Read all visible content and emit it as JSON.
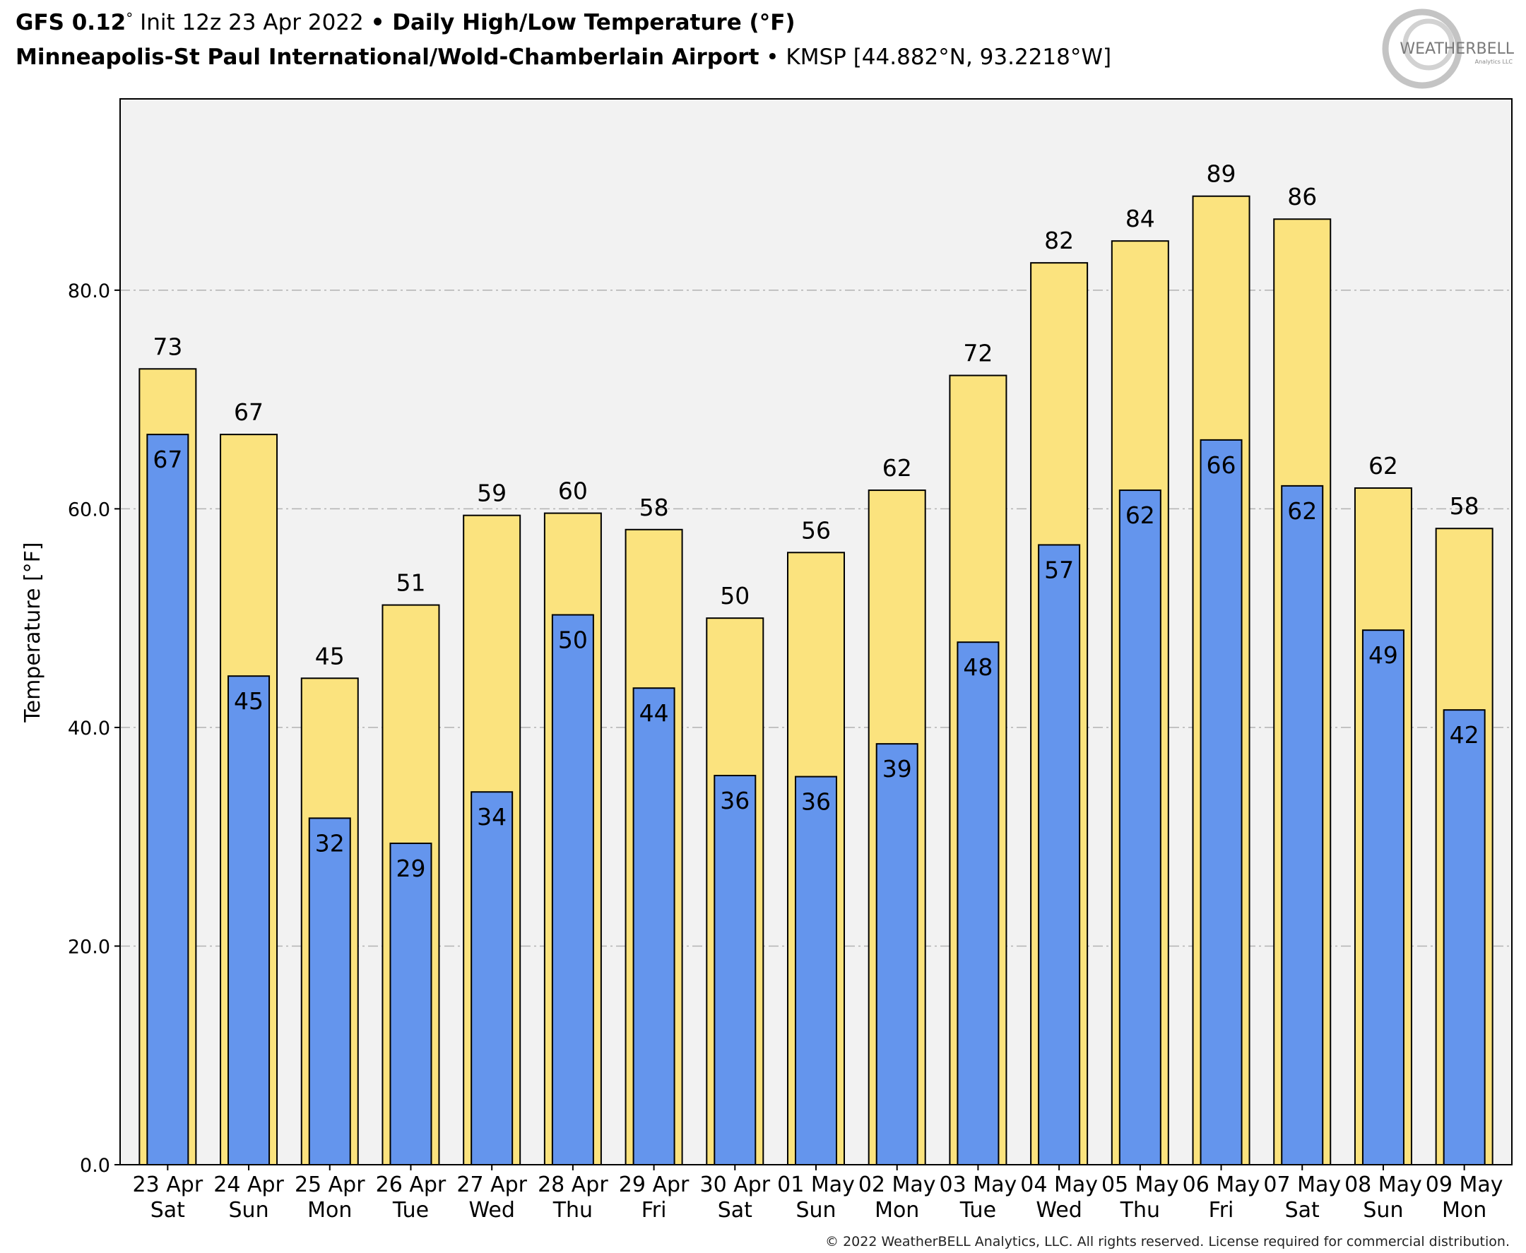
{
  "header": {
    "line1": {
      "model": "GFS 0.12",
      "model_degree": "°",
      "init": " Init 12z 23 Apr 2022 ",
      "separator": "•",
      "product": " Daily High/Low Temperature (°F)"
    },
    "line2": {
      "station_name": "Minneapolis-St Paul International/Wold-Chamberlain Airport",
      "separator": " • ",
      "station_info": "KMSP [44.882°N, 93.2218°W]"
    }
  },
  "logo": {
    "text": "WEATHERBELL",
    "subtext": "Analytics LLC"
  },
  "footer": {
    "copyright": "© 2022 WeatherBELL Analytics, LLC. All rights reserved. License required for commercial distribution."
  },
  "colors": {
    "plot_background": "#f2f2f2",
    "high_bar": "#fbe37e",
    "low_bar": "#6495ed",
    "bar_edge": "#000000",
    "grid": "#b3b3b3"
  },
  "chart_data": {
    "type": "bar",
    "ylabel": "Temperature [°F]",
    "ylim": [
      0,
      97.5
    ],
    "yticks": [
      "0.0",
      "20.0",
      "40.0",
      "60.0",
      "80.0"
    ],
    "grid": true,
    "categories": [
      [
        "23 Apr",
        "Sat"
      ],
      [
        "24 Apr",
        "Sun"
      ],
      [
        "25 Apr",
        "Mon"
      ],
      [
        "26 Apr",
        "Tue"
      ],
      [
        "27 Apr",
        "Wed"
      ],
      [
        "28 Apr",
        "Thu"
      ],
      [
        "29 Apr",
        "Fri"
      ],
      [
        "30 Apr",
        "Sat"
      ],
      [
        "01 May",
        "Sun"
      ],
      [
        "02 May",
        "Mon"
      ],
      [
        "03 May",
        "Tue"
      ],
      [
        "04 May",
        "Wed"
      ],
      [
        "05 May",
        "Thu"
      ],
      [
        "06 May",
        "Fri"
      ],
      [
        "07 May",
        "Sat"
      ],
      [
        "08 May",
        "Sun"
      ],
      [
        "09 May",
        "Mon"
      ]
    ],
    "series": [
      {
        "key": "high",
        "values": [
          72.8,
          66.8,
          44.5,
          51.2,
          59.4,
          59.6,
          58.1,
          50.0,
          56.0,
          61.7,
          72.2,
          82.5,
          84.5,
          88.6,
          86.5,
          61.9,
          58.2
        ],
        "labels": [
          "73",
          "67",
          "45",
          "51",
          "59",
          "60",
          "58",
          "50",
          "56",
          "62",
          "72",
          "82",
          "84",
          "89",
          "86",
          "62",
          "58"
        ]
      },
      {
        "key": "low",
        "values": [
          66.8,
          44.7,
          31.7,
          29.4,
          34.1,
          50.3,
          43.6,
          35.6,
          35.5,
          38.5,
          47.8,
          56.7,
          61.7,
          66.3,
          62.1,
          48.9,
          41.6
        ],
        "labels": [
          "67",
          "45",
          "32",
          "29",
          "34",
          "50",
          "44",
          "36",
          "36",
          "39",
          "48",
          "57",
          "62",
          "66",
          "62",
          "49",
          "42"
        ]
      }
    ]
  }
}
